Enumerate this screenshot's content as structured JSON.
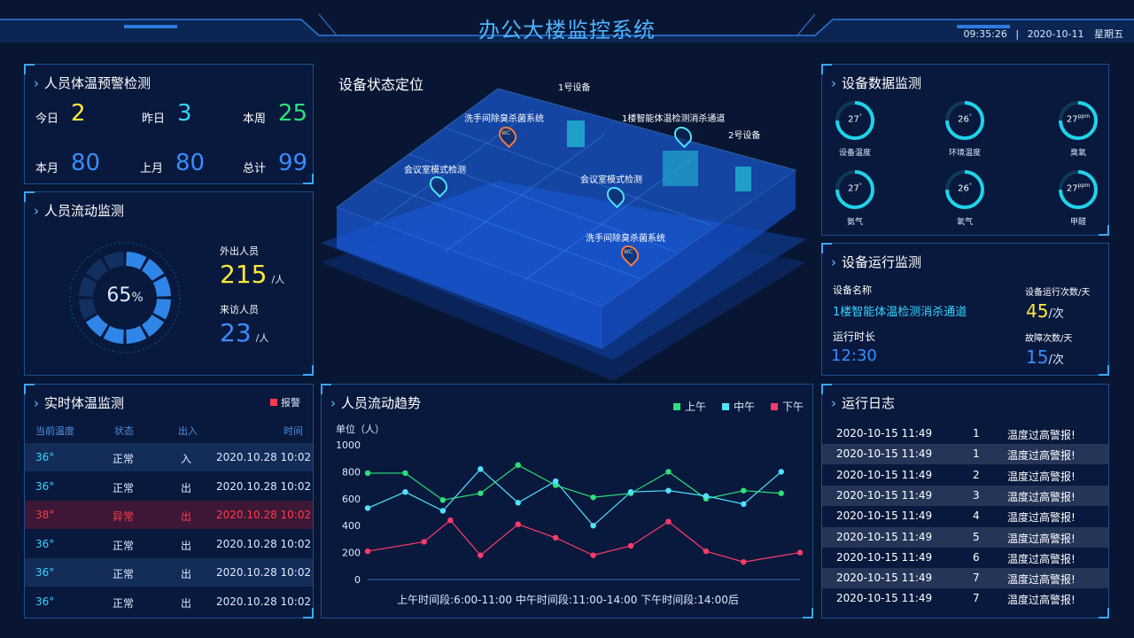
{
  "header": {
    "title": "办公大楼监控系统",
    "time": "09:35:26",
    "date": "2020-10-11",
    "weekday": "星期五",
    "separator": "|"
  },
  "temp_warn": {
    "title": "人员体温预警检测",
    "items": [
      {
        "label": "今日",
        "value": "2",
        "color": "#ffe93a"
      },
      {
        "label": "昨日",
        "value": "3",
        "color": "#39d4ff"
      },
      {
        "label": "本周",
        "value": "25",
        "color": "#2ee07a"
      },
      {
        "label": "本月",
        "value": "80",
        "color": "#3a8cff"
      },
      {
        "label": "上月",
        "value": "80",
        "color": "#3a8cff"
      },
      {
        "label": "总计",
        "value": "99",
        "color": "#3a8cff"
      }
    ]
  },
  "flow": {
    "title": "人员流动监测",
    "percent": "65",
    "pct_sign": "%",
    "percent_value": 65,
    "out_label": "外出人员",
    "out_value": "215",
    "out_unit": "/人",
    "visit_label": "来访人员",
    "visit_value": "23",
    "visit_unit": "/人"
  },
  "map": {
    "title": "设备状态定位",
    "labels": [
      "1号设备",
      "洗手间除臭杀菌系统",
      "1楼智能体温检测消杀通道",
      "2号设备",
      "会议室模式检测",
      "会议室模式检测",
      "洗手间除臭杀菌系统"
    ],
    "wc": "WC"
  },
  "device_data": {
    "title": "设备数据监测",
    "gauges": [
      {
        "value": "27",
        "unit": "°",
        "label": "设备温度"
      },
      {
        "value": "26",
        "unit": "°",
        "label": "环境温度"
      },
      {
        "value": "27",
        "unit": "ppm",
        "label": "臭氧"
      },
      {
        "value": "27",
        "unit": "°",
        "label": "氨气"
      },
      {
        "value": "26",
        "unit": "°",
        "label": "氧气"
      },
      {
        "value": "27",
        "unit": "ppm",
        "label": "甲醛"
      }
    ]
  },
  "device_run": {
    "title": "设备运行监测",
    "name_label": "设备名称",
    "name_value": "1楼智能体温检测消杀通道",
    "count_label": "设备运行次数/天",
    "count_value": "45",
    "count_unit": "/次",
    "time_label": "运行时长",
    "time_value": "12:30",
    "fault_label": "故障次数/天",
    "fault_value": "15",
    "fault_unit": "/次"
  },
  "realtime": {
    "title": "实时体温监测",
    "alarm": "报警",
    "colors": {
      "alarm": "#ff3b4e"
    },
    "headers": [
      "当前温度",
      "状态",
      "出入",
      "时间"
    ],
    "rows": [
      {
        "temp": "36°",
        "state": "正常",
        "dir": "入",
        "time": "2020.10.28 10:02",
        "bad": false
      },
      {
        "temp": "36°",
        "state": "正常",
        "dir": "出",
        "time": "2020.10.28 10:02",
        "bad": false
      },
      {
        "temp": "38°",
        "state": "异常",
        "dir": "出",
        "time": "2020.10.28 10:02",
        "bad": true
      },
      {
        "temp": "36°",
        "state": "正常",
        "dir": "出",
        "time": "2020.10.28 10:02",
        "bad": false
      },
      {
        "temp": "36°",
        "state": "正常",
        "dir": "出",
        "time": "2020.10.28 10:02",
        "bad": false
      },
      {
        "temp": "36°",
        "state": "正常",
        "dir": "出",
        "time": "2020.10.28 10:02",
        "bad": false
      }
    ]
  },
  "trend": {
    "title": "人员流动趋势"
  },
  "chart_data": {
    "type": "line",
    "ylabel": "单位（人）",
    "ylim": [
      0,
      1000
    ],
    "yticks": [
      0,
      200,
      400,
      600,
      800,
      1000
    ],
    "xlabel": "上午时间段:6:00-11:00  中午时间段:11:00-14:00  下午时间段:14:00后",
    "series": [
      {
        "name": "上午",
        "color": "#2ee07a",
        "x": [
          0,
          1,
          2,
          3,
          4,
          5,
          6,
          7,
          8,
          9,
          10,
          11
        ],
        "values": [
          790,
          790,
          590,
          640,
          850,
          700,
          610,
          640,
          800,
          600,
          660,
          640
        ]
      },
      {
        "name": "中午",
        "color": "#4fe3ff",
        "x": [
          0,
          1,
          2,
          3,
          4,
          5,
          6,
          7,
          8,
          9,
          10,
          11
        ],
        "values": [
          530,
          650,
          510,
          820,
          570,
          730,
          400,
          650,
          660,
          620,
          560,
          800
        ]
      },
      {
        "name": "下午",
        "color": "#ff3b6a",
        "x": [
          0,
          1.5,
          2.2,
          3,
          4,
          5,
          6,
          7,
          8,
          9,
          10,
          11.5
        ],
        "values": [
          210,
          280,
          440,
          180,
          410,
          310,
          180,
          250,
          430,
          210,
          130,
          200
        ]
      }
    ]
  },
  "log": {
    "title": "运行日志",
    "rows": [
      {
        "time": "2020-10-15 11:49",
        "n": "1",
        "msg": "温度过高警报!"
      },
      {
        "time": "2020-10-15 11:49",
        "n": "1",
        "msg": "温度过高警报!"
      },
      {
        "time": "2020-10-15 11:49",
        "n": "2",
        "msg": "温度过高警报!"
      },
      {
        "time": "2020-10-15 11:49",
        "n": "3",
        "msg": "温度过高警报!"
      },
      {
        "time": "2020-10-15 11:49",
        "n": "4",
        "msg": "温度过高警报!"
      },
      {
        "time": "2020-10-15 11:49",
        "n": "5",
        "msg": "温度过高警报!"
      },
      {
        "time": "2020-10-15 11:49",
        "n": "6",
        "msg": "温度过高警报!"
      },
      {
        "time": "2020-10-15 11:49",
        "n": "7",
        "msg": "温度过高警报!"
      },
      {
        "time": "2020-10-15 11:49",
        "n": "7",
        "msg": "温度过高警报!"
      }
    ]
  }
}
